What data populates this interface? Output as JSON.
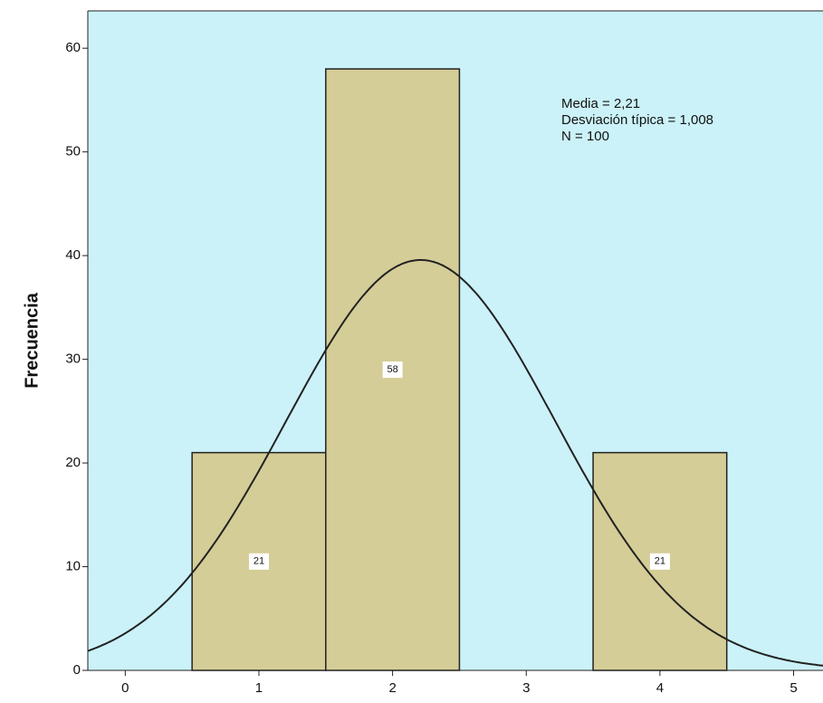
{
  "chart_data": {
    "type": "histogram",
    "y_label": "Frecuencia",
    "bins": [
      0.5,
      1.5,
      2.5,
      3.5,
      4.5
    ],
    "values": [
      21,
      58,
      0,
      21
    ],
    "color": "#d5cd97",
    "xlim": [
      -0.28,
      5.22
    ],
    "ylim": [
      0,
      63.6
    ],
    "xticks": [
      0,
      1,
      2,
      3,
      4,
      5
    ],
    "yticks": [
      0,
      10,
      20,
      30,
      40,
      50,
      60
    ],
    "stats": [
      {
        "value": 2.21,
        "label": "Media = 2,21"
      },
      {
        "value": 1.008,
        "label": "Desviación típica = 1,008"
      },
      {
        "value": 100,
        "label": "N = 100"
      }
    ]
  }
}
